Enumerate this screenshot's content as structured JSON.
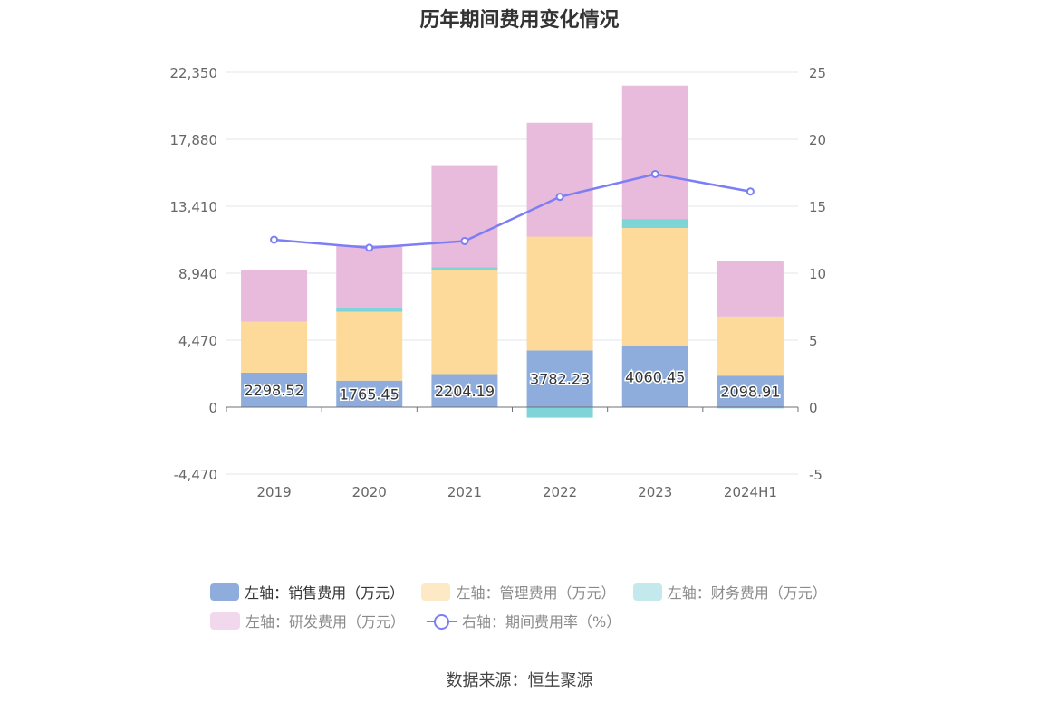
{
  "title": "历年期间费用变化情况",
  "source": "数据来源：恒生聚源",
  "chart_data": {
    "type": "bar",
    "stacked": true,
    "categories": [
      "2019",
      "2020",
      "2021",
      "2022",
      "2023",
      "2024H1"
    ],
    "y_left": {
      "min": -4470,
      "max": 22350,
      "ticks": [
        "-4,470",
        "0",
        "4,470",
        "8,940",
        "13,410",
        "17,880",
        "22,350"
      ]
    },
    "y_right": {
      "min": -5,
      "max": 25,
      "ticks": [
        "-5",
        "0",
        "5",
        "10",
        "15",
        "20",
        "25"
      ]
    },
    "grid": true,
    "legend_position": "bottom",
    "series": [
      {
        "name": "左轴：销售费用（万元）",
        "axis": "left",
        "kind": "bar",
        "color": "#8eaddc",
        "values": [
          2298.52,
          1765.45,
          2204.19,
          3782.23,
          4060.45,
          2098.91
        ],
        "labels": [
          "2298.52",
          "1765.45",
          "2204.19",
          "3782.23",
          "4060.45",
          "2098.91"
        ]
      },
      {
        "name": "左轴：管理费用（万元）",
        "axis": "left",
        "kind": "bar",
        "color": "#fdd99a",
        "values": [
          3400,
          4600,
          6950,
          7600,
          7900,
          3950
        ]
      },
      {
        "name": "左轴：财务费用（万元）",
        "axis": "left",
        "kind": "bar",
        "color": "#7fd4d8",
        "values": [
          -20,
          250,
          200,
          -700,
          600,
          -80
        ]
      },
      {
        "name": "左轴：研发费用（万元）",
        "axis": "left",
        "kind": "bar",
        "color": "#e8badb",
        "values": [
          3450,
          4200,
          6800,
          7600,
          8900,
          3700
        ]
      },
      {
        "name": "右轴：期间费用率（%）",
        "axis": "right",
        "kind": "line",
        "color": "#7b7ef5",
        "values": [
          12.5,
          11.9,
          12.4,
          15.7,
          17.4,
          16.1
        ]
      }
    ]
  },
  "legend": [
    {
      "label": "左轴：销售费用（万元）",
      "color": "#8eaddc",
      "muted": false,
      "kind": "swatch"
    },
    {
      "label": "左轴：管理费用（万元）",
      "color": "#fde9c6",
      "muted": true,
      "kind": "swatch"
    },
    {
      "label": "左轴：财务费用（万元）",
      "color": "#c4e9ec",
      "muted": true,
      "kind": "swatch"
    },
    {
      "label": "左轴：研发费用（万元）",
      "color": "#f1d8ec",
      "muted": true,
      "kind": "swatch"
    },
    {
      "label": "右轴：期间费用率（%）",
      "color": "#7b7ef5",
      "muted": true,
      "kind": "line"
    }
  ]
}
